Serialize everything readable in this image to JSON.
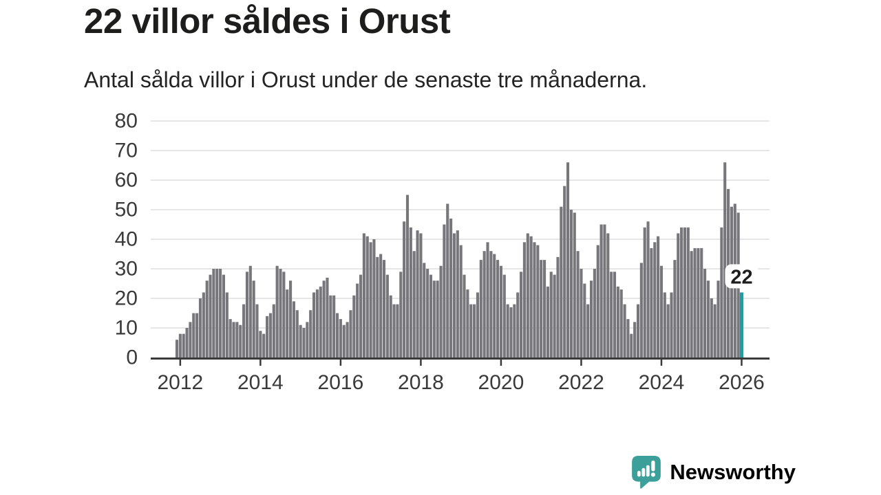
{
  "page": {
    "title": "22 villor såldes i Orust",
    "subtitle": "Antal sålda villor i Orust under de senaste tre månaderna."
  },
  "chart_data": {
    "type": "bar",
    "title": "22 villor såldes i Orust",
    "subtitle": "Antal sålda villor i Orust under de senaste tre månaderna.",
    "xlabel": "",
    "ylabel": "",
    "frequency": "monthly-rolling-3-month",
    "x_start": {
      "year": 2011,
      "month": 12
    },
    "values": [
      6,
      8,
      8,
      10,
      12,
      15,
      15,
      20,
      22,
      26,
      28,
      30,
      30,
      30,
      28,
      22,
      13,
      12,
      12,
      11,
      18,
      29,
      31,
      26,
      18,
      9,
      8,
      14,
      15,
      18,
      31,
      30,
      29,
      23,
      26,
      19,
      16,
      11,
      10,
      12,
      16,
      22,
      23,
      24,
      26,
      27,
      21,
      21,
      15,
      13,
      11,
      12,
      16,
      21,
      25,
      28,
      42,
      41,
      39,
      40,
      34,
      35,
      33,
      28,
      21,
      18,
      18,
      29,
      46,
      55,
      44,
      36,
      43,
      42,
      32,
      30,
      28,
      26,
      26,
      31,
      45,
      52,
      47,
      42,
      43,
      38,
      28,
      23,
      18,
      18,
      22,
      33,
      36,
      39,
      36,
      35,
      33,
      31,
      28,
      18,
      17,
      18,
      22,
      29,
      39,
      42,
      41,
      39,
      38,
      33,
      33,
      24,
      29,
      28,
      34,
      51,
      58,
      66,
      50,
      49,
      36,
      30,
      25,
      18,
      26,
      30,
      38,
      45,
      45,
      42,
      29,
      29,
      24,
      23,
      18,
      13,
      8,
      12,
      18,
      32,
      44,
      46,
      37,
      39,
      41,
      31,
      22,
      18,
      22,
      33,
      42,
      44,
      44,
      44,
      36,
      37,
      37,
      37,
      30,
      26,
      20,
      18,
      26,
      44,
      66,
      57,
      51,
      52,
      49,
      22
    ],
    "highlight_last_bar": true,
    "annotation": {
      "text": "22",
      "target": "last-bar"
    },
    "yticks": [
      0,
      10,
      20,
      30,
      40,
      50,
      60,
      70,
      80
    ],
    "ylim": [
      0,
      80
    ],
    "xticks": [
      2012,
      2014,
      2016,
      2018,
      2020,
      2022,
      2024,
      2026
    ],
    "grid": "horizontal",
    "legend": "none",
    "colors": {
      "bar": "#76767b",
      "highlight": "#16a2a5",
      "axis": "#3a3a3a",
      "grid": "#dedede",
      "text": "#3a3a3a",
      "annotation_text": "#1d1d1b"
    }
  },
  "footer": {
    "brand": "Newsworthy",
    "brand_color": "#3d9f99",
    "logo_icon": "newsworthy-speech-bubble-barchart-icon"
  }
}
